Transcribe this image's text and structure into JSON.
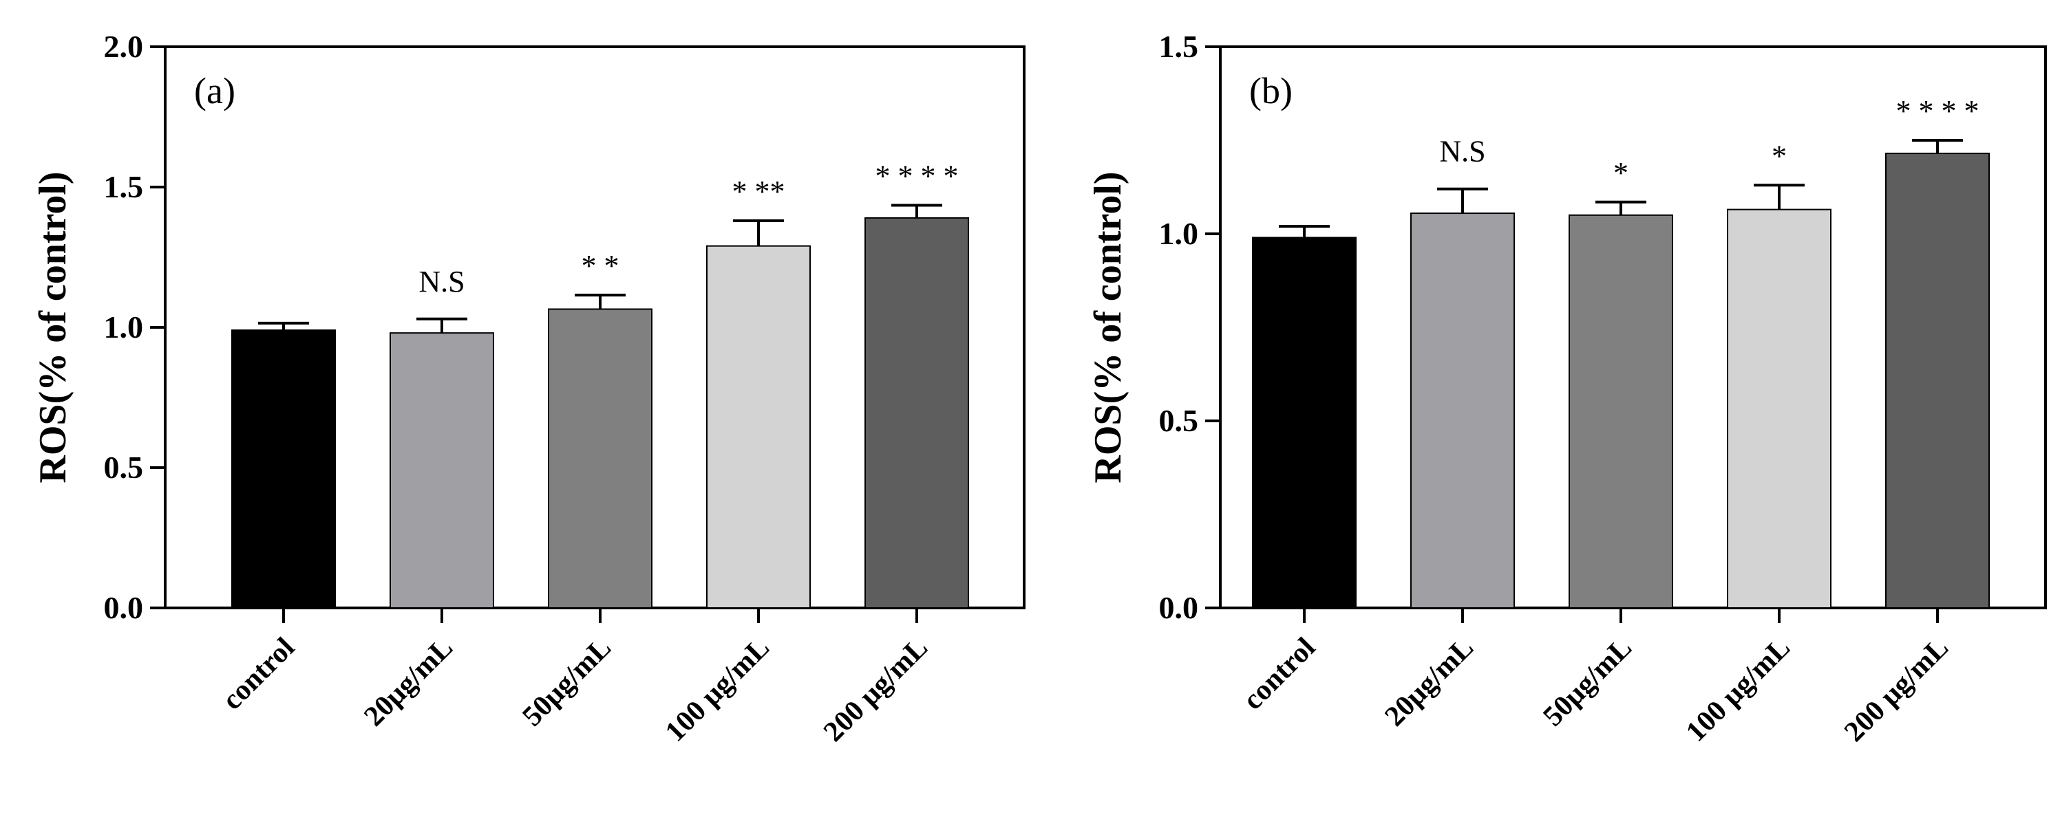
{
  "chart_data": [
    {
      "type": "bar",
      "panel_label": "(a)",
      "categories": [
        "control",
        "20μg/mL",
        "50μg/mL",
        "100 μg/mL",
        "200 μg/mL"
      ],
      "values": [
        0.99,
        0.98,
        1.065,
        1.29,
        1.39
      ],
      "errors": [
        0.025,
        0.05,
        0.05,
        0.09,
        0.045
      ],
      "significance": [
        "",
        "N.S",
        "* *",
        "* **",
        "* * * *"
      ],
      "colors": [
        "#000000",
        "#a0a0a4",
        "#808080",
        "#d3d3d3",
        "#5e5e5e"
      ],
      "ylabel": "ROS(% of control)",
      "xlabel": "",
      "ylim": [
        0,
        2.0
      ],
      "yticks": [
        0.0,
        0.5,
        1.0,
        1.5,
        2.0
      ],
      "ytick_labels": [
        "0.0",
        "0.5",
        "1.0",
        "1.5",
        "2.0"
      ],
      "grid": false,
      "legend": "none"
    },
    {
      "type": "bar",
      "panel_label": "(b)",
      "categories": [
        "control",
        "20μg/mL",
        "50μg/mL",
        "100 μg/mL",
        "200 μg/mL"
      ],
      "values": [
        0.99,
        1.055,
        1.05,
        1.065,
        1.215
      ],
      "errors": [
        0.03,
        0.065,
        0.035,
        0.065,
        0.035
      ],
      "significance": [
        "",
        "N.S",
        "*",
        "*",
        "* * * *"
      ],
      "colors": [
        "#000000",
        "#a0a0a4",
        "#808080",
        "#d3d3d3",
        "#5e5e5e"
      ],
      "ylabel": "ROS(% of control)",
      "xlabel": "",
      "ylim": [
        0,
        1.5
      ],
      "yticks": [
        0.0,
        0.5,
        1.0,
        1.5
      ],
      "ytick_labels": [
        "0.0",
        "0.5",
        "1.0",
        "1.5"
      ],
      "grid": false,
      "legend": "none"
    }
  ]
}
